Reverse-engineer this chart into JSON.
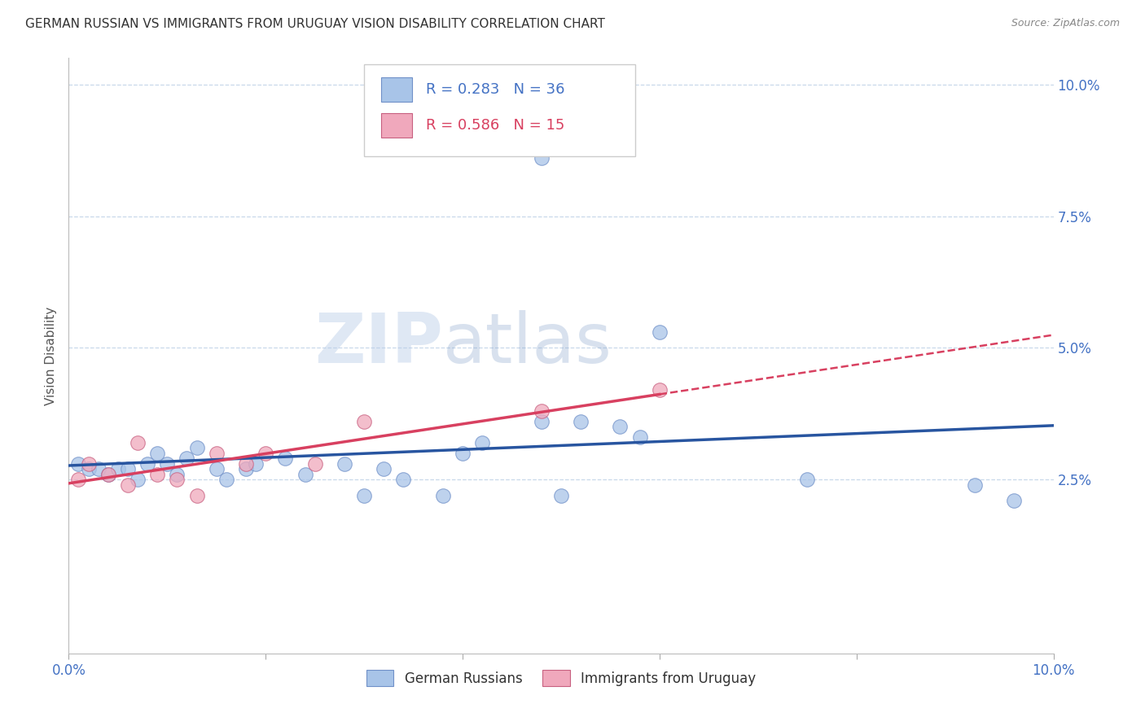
{
  "title": "GERMAN RUSSIAN VS IMMIGRANTS FROM URUGUAY VISION DISABILITY CORRELATION CHART",
  "source": "Source: ZipAtlas.com",
  "ylabel": "Vision Disability",
  "legend_label1": "German Russians",
  "legend_label2": "Immigrants from Uruguay",
  "r1": 0.283,
  "n1": 36,
  "r2": 0.586,
  "n2": 15,
  "color1": "#a8c4e8",
  "color2": "#f0a8bc",
  "line_color1": "#2855a0",
  "line_color2": "#d84060",
  "watermark": "ZIPatlas",
  "blue_x": [
    0.001,
    0.002,
    0.003,
    0.004,
    0.005,
    0.006,
    0.007,
    0.008,
    0.009,
    0.01,
    0.011,
    0.012,
    0.013,
    0.015,
    0.016,
    0.018,
    0.019,
    0.022,
    0.024,
    0.028,
    0.03,
    0.032,
    0.034,
    0.038,
    0.04,
    0.042,
    0.048,
    0.05,
    0.052,
    0.056,
    0.058,
    0.06,
    0.048,
    0.075,
    0.092,
    0.096
  ],
  "blue_y": [
    0.028,
    0.027,
    0.027,
    0.026,
    0.027,
    0.027,
    0.025,
    0.028,
    0.03,
    0.028,
    0.026,
    0.029,
    0.031,
    0.027,
    0.025,
    0.027,
    0.028,
    0.029,
    0.026,
    0.028,
    0.022,
    0.027,
    0.025,
    0.022,
    0.03,
    0.032,
    0.036,
    0.022,
    0.036,
    0.035,
    0.033,
    0.053,
    0.086,
    0.025,
    0.024,
    0.021
  ],
  "pink_x": [
    0.001,
    0.002,
    0.004,
    0.006,
    0.007,
    0.009,
    0.011,
    0.013,
    0.015,
    0.018,
    0.02,
    0.025,
    0.03,
    0.048,
    0.06
  ],
  "pink_y": [
    0.025,
    0.028,
    0.026,
    0.024,
    0.032,
    0.026,
    0.025,
    0.022,
    0.03,
    0.028,
    0.03,
    0.028,
    0.036,
    0.038,
    0.042
  ],
  "xlim": [
    0.0,
    0.1
  ],
  "ylim": [
    0.0,
    0.105
  ],
  "ytick_positions": [
    0.025,
    0.05,
    0.075,
    0.1
  ],
  "ytick_labels": [
    "2.5%",
    "5.0%",
    "7.5%",
    "10.0%"
  ],
  "xtick_positions": [
    0.0,
    0.02,
    0.04,
    0.06,
    0.08,
    0.1
  ],
  "xtick_labels": [
    "0.0%",
    "",
    "",
    "",
    "",
    "10.0%"
  ]
}
